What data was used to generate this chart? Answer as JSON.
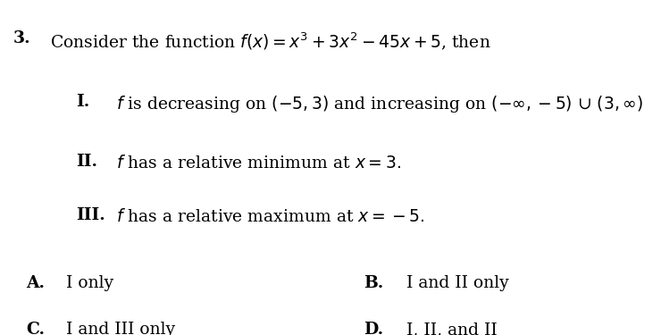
{
  "background_color": "#ffffff",
  "fig_width": 7.4,
  "fig_height": 3.75,
  "dpi": 100,
  "text_color": "#000000",
  "font_size": 13.5,
  "q_num": "3.",
  "q_body": "Consider the function $f(x) = x^3 + 3x^2 - 45x + 5$, then",
  "label_I": "I.",
  "text_I": "$f$ is decreasing on $(-5, 3)$ and increasing on $(-\\infty, -5)$ ∪ $(3, \\infty)$",
  "label_II": "II.",
  "text_II": "$f$ has a relative minimum at $x = 3.$",
  "label_III": "III.",
  "text_III": "$f$ has a relative maximum at $x = -5.$",
  "label_A": "A.",
  "text_A": "I only",
  "label_B": "B.",
  "text_B": "I and II only",
  "label_C": "C.",
  "text_C": "I and III only",
  "label_D": "D.",
  "text_D": "I, II, and II"
}
